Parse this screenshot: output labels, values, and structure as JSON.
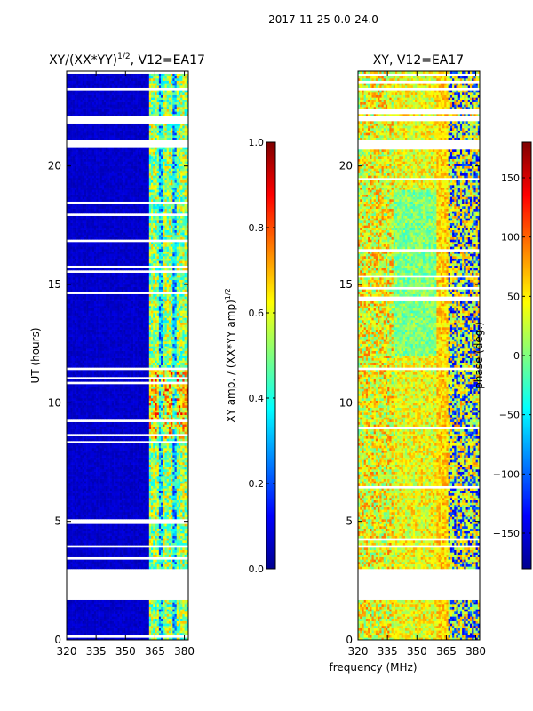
{
  "suptitle": "2017-11-25 0.0-24.0",
  "xlabel_shared": "frequency (MHz)",
  "colors": {
    "deep_blue": "#00008f",
    "blue": "#0000ff",
    "cyan": "#00ffff",
    "green": "#7fff7f",
    "yellow": "#ffff00",
    "orange": "#ff7f00",
    "red": "#ff0000",
    "dark_red": "#7f0000",
    "gap": "#ffffff"
  },
  "chart_data": [
    {
      "type": "heatmap",
      "title": "XY/(XX*YY)^1/2, V12=EA17",
      "title_main": "XY/(XX*YY)",
      "title_sup": "1/2",
      "title_tail": ", V12=EA17",
      "xlabel": "",
      "ylabel": "UT (hours)",
      "xlim": [
        320,
        382
      ],
      "ylim": [
        0,
        24
      ],
      "xticks": [
        320,
        335,
        350,
        365,
        380
      ],
      "yticks": [
        0,
        5,
        10,
        15,
        20
      ],
      "colorbar": {
        "label": "XY amp. / (XX*YY amp)^1/2",
        "label_main": "XY amp. / (XX*YY amp)",
        "label_sup": "1/2",
        "range": [
          0.0,
          1.0
        ],
        "ticks": [
          "0.0",
          "0.2",
          "0.4",
          "0.6",
          "0.8",
          "1.0"
        ],
        "tick_values": [
          0.0,
          0.2,
          0.4,
          0.6,
          0.8,
          1.0
        ],
        "colormap": "jet"
      },
      "description_of_values": "Low amplitude (~0.05) across 320-362 MHz; elevated 0.3-0.9 in 362-380 MHz band with peaks near 9-11 UT",
      "gap_hours": [
        [
          1.75,
          3.0
        ],
        [
          3.9,
          4.0
        ],
        [
          20.8,
          21.1
        ],
        [
          21.9,
          22.1
        ],
        [
          23.2,
          23.3
        ]
      ]
    },
    {
      "type": "heatmap",
      "title": "XY, V12=EA17",
      "xlabel": "frequency (MHz)",
      "ylabel": "",
      "xlim": [
        320,
        382
      ],
      "ylim": [
        0,
        24
      ],
      "xticks": [
        320,
        335,
        350,
        365,
        380
      ],
      "yticks": [
        0,
        5,
        10,
        15,
        20
      ],
      "colorbar": {
        "label": "phase (deg.)",
        "range": [
          -180,
          180
        ],
        "ticks": [
          "−150",
          "−100",
          "−50",
          "0",
          "50",
          "100",
          "150"
        ],
        "tick_values": [
          -150,
          -100,
          -50,
          0,
          50,
          100,
          150
        ],
        "colormap": "jet"
      },
      "description_of_values": "Phase mostly 30-90 deg (yellow/orange) across band, with green (-20..20 deg) regions 338-360 MHz and mixed blue/red wrapping near 365-380 MHz",
      "gap_hours": [
        [
          1.75,
          3.0
        ],
        [
          3.9,
          4.0
        ],
        [
          20.8,
          21.1
        ],
        [
          21.9,
          22.1
        ],
        [
          23.2,
          23.3
        ]
      ]
    }
  ]
}
